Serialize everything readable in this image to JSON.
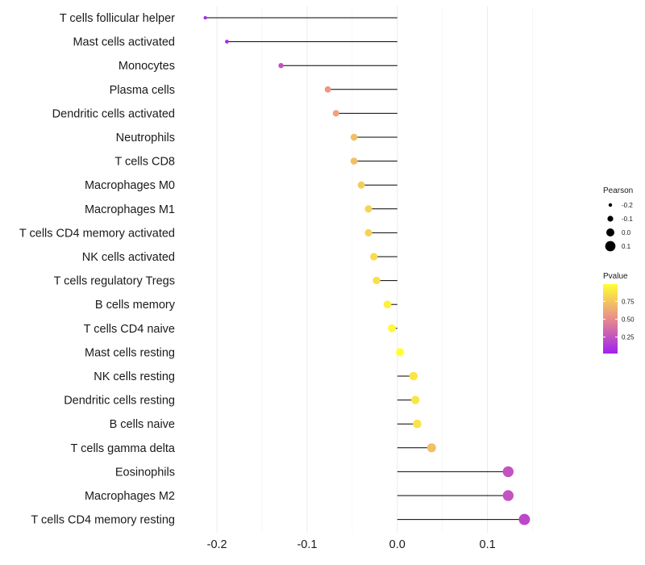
{
  "chart_data": {
    "type": "lollipop",
    "title": "",
    "xlabel": "",
    "ylabel": "",
    "xlim": [
      -0.235,
      0.205
    ],
    "x_ticks": [
      -0.2,
      -0.1,
      0.0,
      0.1
    ],
    "x_tick_labels": [
      "-0.2",
      "-0.1",
      "0.0",
      "0.1"
    ],
    "grid": true,
    "baseline": 0,
    "categories": [
      "T cells follicular helper",
      "Mast cells activated",
      "Monocytes",
      "Plasma cells",
      "Dendritic cells activated",
      "Neutrophils",
      "T cells CD8",
      "Macrophages M0",
      "Macrophages M1",
      "T cells CD4 memory activated",
      "NK cells activated",
      "T cells regulatory  Tregs ",
      "B cells memory",
      "T cells CD4 naive",
      "Mast cells resting",
      "NK cells resting",
      "Dendritic cells resting",
      "B cells naive",
      "T cells gamma delta",
      "Eosinophils",
      "Macrophages M2",
      "T cells CD4 memory resting"
    ],
    "pearson": [
      -0.213,
      -0.189,
      -0.129,
      -0.077,
      -0.068,
      -0.048,
      -0.048,
      -0.04,
      -0.032,
      -0.032,
      -0.026,
      -0.023,
      -0.011,
      -0.006,
      0.003,
      0.018,
      0.02,
      0.022,
      0.038,
      0.123,
      0.123,
      0.141
    ],
    "pvalue": [
      0.02,
      0.06,
      0.24,
      0.55,
      0.6,
      0.72,
      0.72,
      0.78,
      0.81,
      0.8,
      0.84,
      0.86,
      0.93,
      0.96,
      0.99,
      0.89,
      0.88,
      0.87,
      0.72,
      0.25,
      0.25,
      0.2
    ],
    "legend": {
      "position": "right",
      "size_title": "Pearson",
      "size_breaks": [
        -0.2,
        -0.1,
        0.0,
        0.1
      ],
      "size_labels": [
        "-0.2",
        "-0.1",
        "0.0",
        "0.1"
      ],
      "color_title": "Pvalue",
      "color_breaks": [
        0.25,
        0.5,
        0.75
      ],
      "color_labels": [
        "0.25",
        "0.50",
        "0.75"
      ],
      "color_range": [
        0.02,
        0.99
      ],
      "color_low": "#a020f0",
      "color_mid": "#e88c8c",
      "color_high": "#ffff33"
    }
  }
}
